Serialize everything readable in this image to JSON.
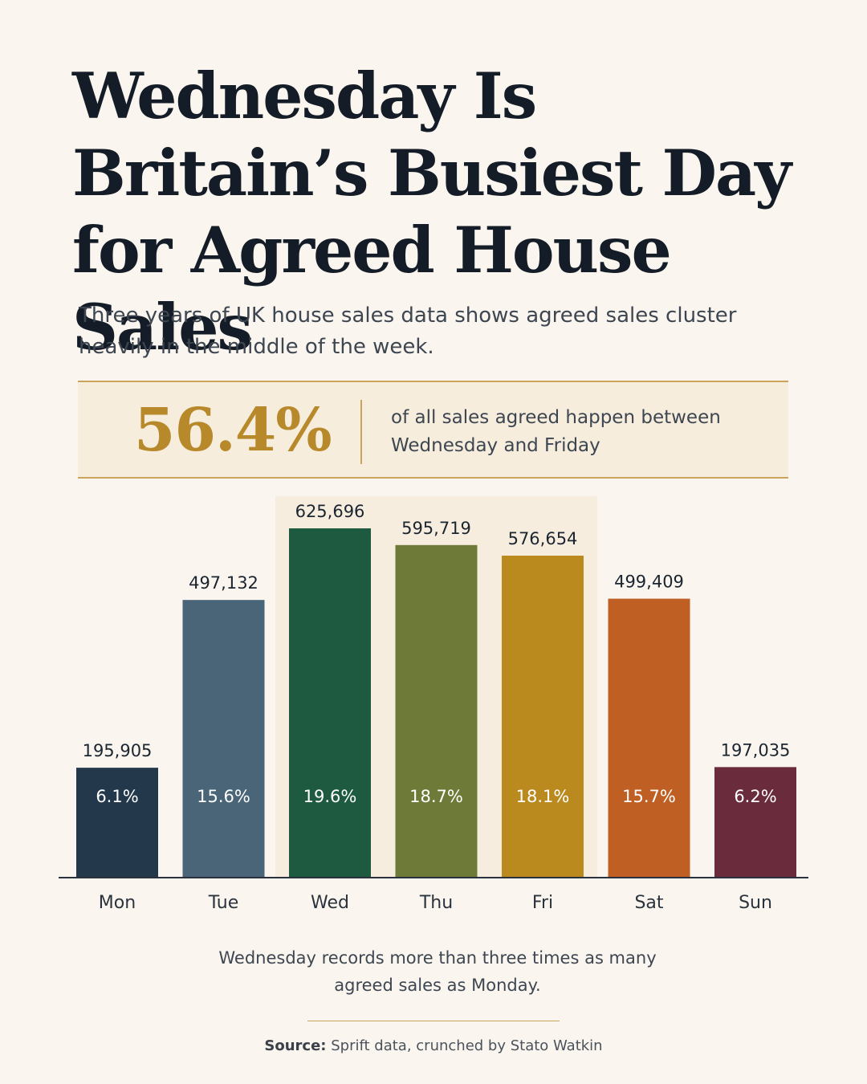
{
  "title": "Wednesday Is Britain’s Busiest Day for Agreed House Sales",
  "subtitle": "Three years of UK house sales data shows agreed sales cluster heavily in the middle of the week.",
  "callout": {
    "value": "56.4%",
    "text": "of all sales agreed happen between Wednesday and Friday"
  },
  "chart_data": {
    "type": "bar",
    "categories": [
      "Mon",
      "Tue",
      "Wed",
      "Thu",
      "Fri",
      "Sat",
      "Sun"
    ],
    "values": [
      195905,
      497132,
      625696,
      595719,
      576654,
      499409,
      197035
    ],
    "value_labels": [
      "195,905",
      "497,132",
      "625,696",
      "595,719",
      "576,654",
      "499,409",
      "197,035"
    ],
    "percent_labels": [
      "6.1%",
      "15.6%",
      "19.6%",
      "18.7%",
      "18.1%",
      "15.7%",
      "6.2%"
    ],
    "colors": [
      "#24384b",
      "#4a6578",
      "#1d5a3f",
      "#6e7b38",
      "#bb8a1e",
      "#bf5f23",
      "#6a2b3d"
    ],
    "highlight_range": [
      "Wed",
      "Fri"
    ],
    "ylim": [
      0,
      625696
    ],
    "grid": false
  },
  "footnote": "Wednesday records more than three times as many agreed sales as Monday.",
  "source": {
    "label": "Source:",
    "text": "Sprift data, crunched by Stato Watkin"
  }
}
